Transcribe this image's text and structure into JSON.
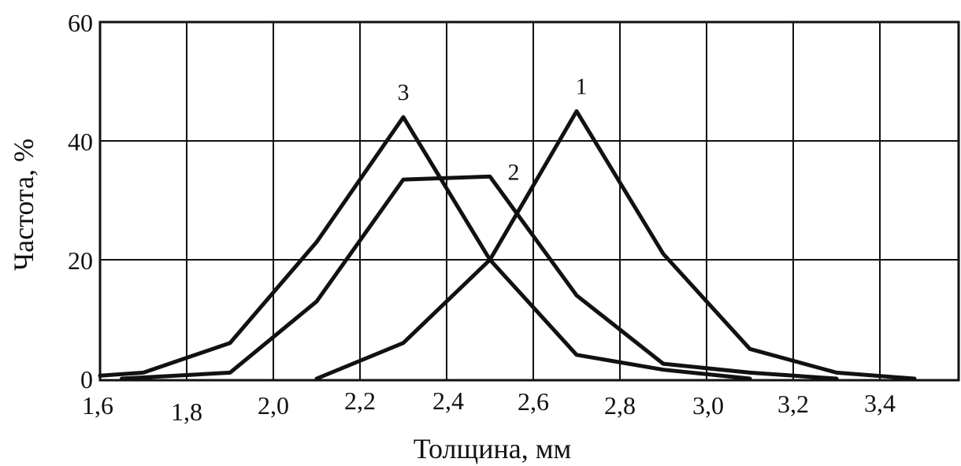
{
  "chart_data": {
    "type": "line",
    "xlabel": "Толщина, мм",
    "ylabel": "Частота, %",
    "xlim": [
      1.6,
      3.55
    ],
    "ylim": [
      0,
      60
    ],
    "grid": true,
    "x_ticks": [
      {
        "value": 1.6,
        "label": "1,6"
      },
      {
        "value": 1.8,
        "label": "1,8"
      },
      {
        "value": 2.0,
        "label": "2,0"
      },
      {
        "value": 2.2,
        "label": "2,2"
      },
      {
        "value": 2.4,
        "label": "2,4"
      },
      {
        "value": 2.6,
        "label": "2,6"
      },
      {
        "value": 2.8,
        "label": "2,8"
      },
      {
        "value": 3.0,
        "label": "3,0"
      },
      {
        "value": 3.2,
        "label": "3,2"
      },
      {
        "value": 3.4,
        "label": "3,4"
      }
    ],
    "y_ticks": [
      {
        "value": 0,
        "label": "0"
      },
      {
        "value": 20,
        "label": "20"
      },
      {
        "value": 40,
        "label": "40"
      },
      {
        "value": 60,
        "label": "60"
      }
    ],
    "series": [
      {
        "name": "1",
        "x": [
          2.1,
          2.3,
          2.5,
          2.7,
          2.9,
          3.1,
          3.3,
          3.48
        ],
        "values": [
          0,
          6,
          20,
          45,
          21,
          5,
          1,
          0
        ]
      },
      {
        "name": "2",
        "x": [
          1.65,
          1.9,
          2.1,
          2.3,
          2.5,
          2.7,
          2.9,
          3.1,
          3.3
        ],
        "values": [
          0,
          1,
          13,
          33.5,
          34,
          14,
          2.5,
          1,
          0
        ]
      },
      {
        "name": "3",
        "x": [
          1.6,
          1.7,
          1.9,
          2.1,
          2.3,
          2.5,
          2.7,
          2.9,
          3.1
        ],
        "values": [
          0.5,
          1,
          6,
          23,
          44,
          20,
          4,
          1.5,
          0
        ]
      }
    ]
  }
}
